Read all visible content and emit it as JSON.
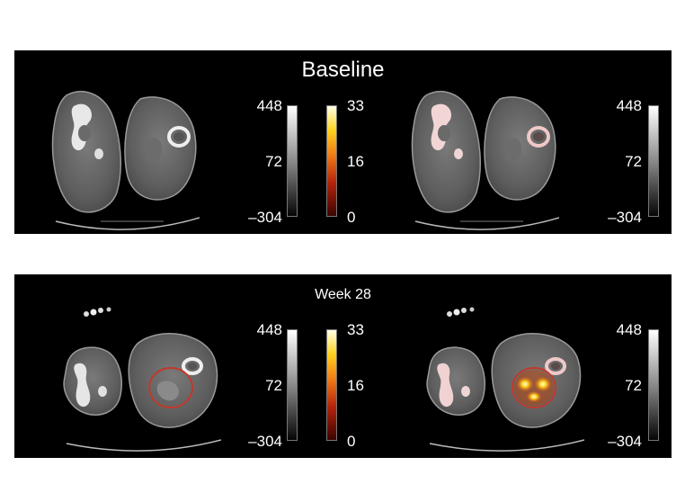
{
  "panels": [
    {
      "title": "Baseline",
      "ct_scale": {
        "max": "448",
        "mid": "72",
        "min": "–304"
      },
      "pet_scale": {
        "max": "33",
        "mid": "16",
        "min": "0"
      },
      "fused_ct_scale": {
        "max": "448",
        "mid": "72",
        "min": "–304"
      }
    },
    {
      "title": "Week 28",
      "ct_scale": {
        "max": "448",
        "mid": "72",
        "min": "–304"
      },
      "pet_scale": {
        "max": "33",
        "mid": "16",
        "min": "0"
      },
      "fused_ct_scale": {
        "max": "448",
        "mid": "72",
        "min": "–304"
      }
    }
  ],
  "colors": {
    "background": "#000000",
    "lesion_outline": "#c0392b",
    "pet_hot": "#ffd21e"
  }
}
